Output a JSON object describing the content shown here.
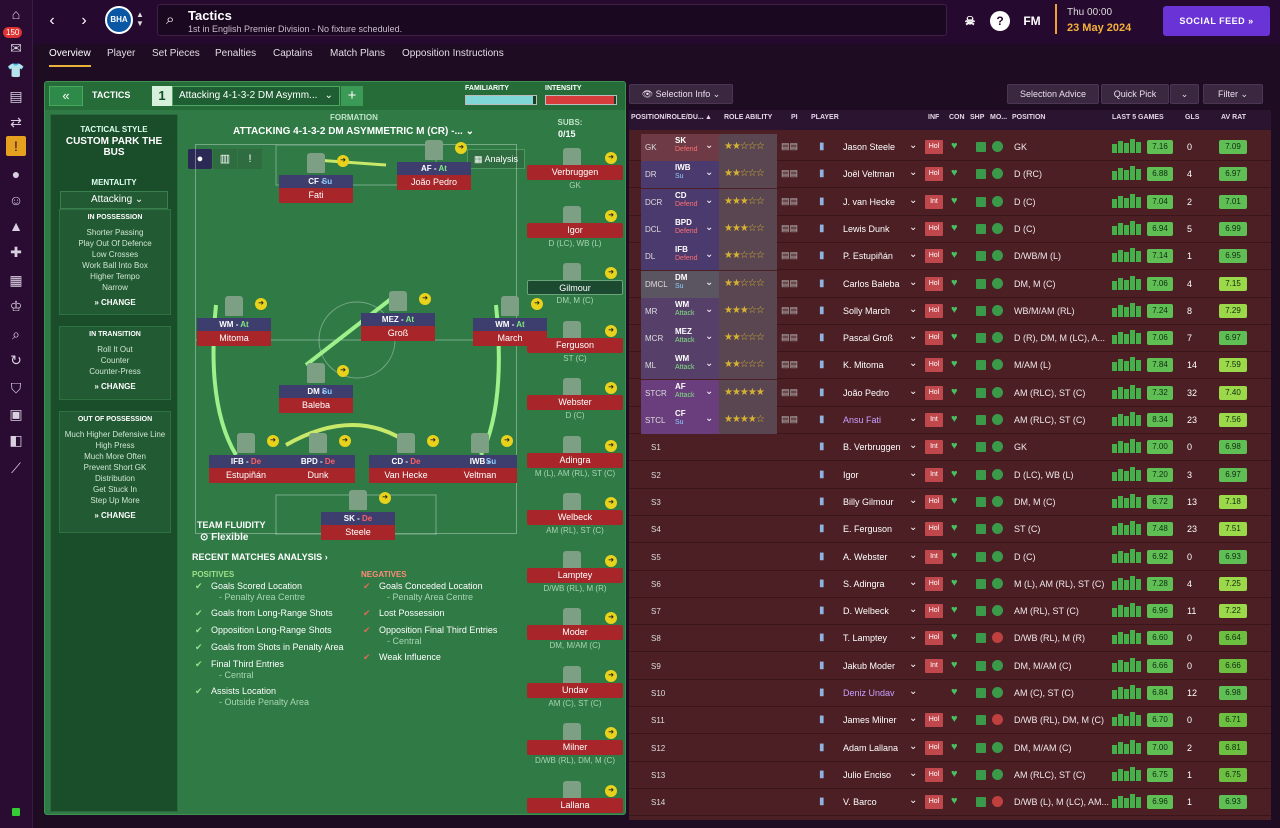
{
  "app": {
    "title": "Tactics",
    "subtitle": "1st in English Premier Division - No fixture scheduled.",
    "club_abbr": "BHA",
    "fm_label": "FM",
    "date_time": "Thu 00:00",
    "date": "23 May 2024",
    "social_feed": "SOCIAL FEED",
    "badge_count": "150",
    "accent": "#6a33d6"
  },
  "tabs": [
    "Overview",
    "Player",
    "Set Pieces",
    "Penalties",
    "Captains",
    "Match Plans",
    "Opposition Instructions"
  ],
  "tactics": {
    "header_label": "TACTICS",
    "slot": "1",
    "tactic_name": "Attacking 4-1-3-2 DM Asymm...",
    "familiarity_label": "FAMILIARITY",
    "familiarity": 0.95,
    "intensity_label": "INTENSITY",
    "intensity": 0.97,
    "formation_label": "FORMATION",
    "formation_name": "ATTACKING 4-1-3-2 DM ASYMMETRIC M (CR) -...",
    "subs_label": "SUBS:",
    "subs_count": "0/15",
    "analysis": "Analysis",
    "fluidity_label": "TEAM FLUIDITY",
    "fluidity": "Flexible"
  },
  "side": {
    "style_label": "TACTICAL STYLE",
    "style_name": "CUSTOM PARK THE BUS",
    "mentality_label": "MENTALITY",
    "mentality": "Attacking",
    "change": "CHANGE",
    "in_possession": {
      "title": "IN POSSESSION",
      "items": [
        "Shorter Passing",
        "Play Out Of Defence",
        "Low Crosses",
        "Work Ball Into Box",
        "Higher Tempo",
        "Narrow"
      ]
    },
    "in_transition": {
      "title": "IN TRANSITION",
      "items": [
        "Roll It Out",
        "Counter",
        "Counter-Press"
      ]
    },
    "out_possession": {
      "title": "OUT OF POSSESSION",
      "items": [
        "Much Higher Defensive Line",
        "High Press",
        "Much More Often",
        "Prevent Short GK",
        "Distribution",
        "Get Stuck In",
        "Step Up More"
      ]
    }
  },
  "pitch_players": [
    {
      "role": "CF",
      "duty": "Su",
      "name": "Fati"
    },
    {
      "role": "AF",
      "duty": "At",
      "name": "João Pedro"
    },
    {
      "role": "WM",
      "duty": "At",
      "name": "Mitoma"
    },
    {
      "role": "MEZ",
      "duty": "At",
      "name": "Groß"
    },
    {
      "role": "WM",
      "duty": "At",
      "name": "March"
    },
    {
      "role": "DM",
      "duty": "Su",
      "name": "Baleba"
    },
    {
      "role": "IFB",
      "duty": "De",
      "name": "Estupiñán"
    },
    {
      "role": "BPD",
      "duty": "De",
      "name": "Dunk"
    },
    {
      "role": "CD",
      "duty": "De",
      "name": "Van Hecke"
    },
    {
      "role": "IWB",
      "duty": "Su",
      "name": "Veltman"
    },
    {
      "role": "SK",
      "duty": "De",
      "name": "Steele"
    }
  ],
  "subs": [
    {
      "name": "Verbruggen",
      "pos": "GK"
    },
    {
      "name": "Igor",
      "pos": "D (LC), WB (L)"
    },
    {
      "name": "Gilmour",
      "pos": "DM, M (C)"
    },
    {
      "name": "Ferguson",
      "pos": "ST (C)"
    },
    {
      "name": "Webster",
      "pos": "D (C)"
    },
    {
      "name": "Adingra",
      "pos": "M (L), AM (RL), ST (C)"
    },
    {
      "name": "Welbeck",
      "pos": "AM (RL), ST (C)"
    },
    {
      "name": "Lamptey",
      "pos": "D/WB (RL), M (R)"
    },
    {
      "name": "Moder",
      "pos": "DM, M/AM (C)"
    },
    {
      "name": "Undav",
      "pos": "AM (C), ST (C)"
    },
    {
      "name": "Milner",
      "pos": "D/WB (RL), DM, M (C)"
    },
    {
      "name": "Lallana",
      "pos": ""
    }
  ],
  "recent": {
    "title": "RECENT MATCHES ANALYSIS",
    "pos_label": "POSITIVES",
    "neg_label": "NEGATIVES",
    "positives": [
      {
        "t": "Goals Scored Location",
        "s": "- Penalty Area Centre"
      },
      {
        "t": "Goals from Long-Range Shots",
        "s": ""
      },
      {
        "t": "Opposition Long-Range Shots",
        "s": ""
      },
      {
        "t": "Goals from Shots in Penalty Area",
        "s": ""
      },
      {
        "t": "Final Third Entries",
        "s": "- Central"
      },
      {
        "t": "Assists Location",
        "s": "- Outside Penalty Area"
      }
    ],
    "negatives": [
      {
        "t": "Goals Conceded Location",
        "s": "- Penalty Area Centre"
      },
      {
        "t": "Lost Possession",
        "s": ""
      },
      {
        "t": "Opposition Final Third Entries",
        "s": "- Central"
      },
      {
        "t": "Weak Influence",
        "s": ""
      }
    ]
  },
  "selection": {
    "info": "Selection Info",
    "advice": "Selection Advice",
    "quick_pick": "Quick Pick",
    "filter": "Filter"
  },
  "columns": [
    "POSITION/ROLE/DU...",
    "ROLE ABILITY",
    "PI",
    "PLAYER",
    "INF",
    "CON",
    "SHP",
    "MO...",
    "POSITION",
    "LAST 5 GAMES",
    "GLS",
    "AV RAT"
  ],
  "rows": [
    {
      "pos": "GK",
      "role": "SK",
      "duty": "Defend",
      "stars": "★★☆☆☆",
      "name": "Jason Steele",
      "inf": "Hol",
      "position": "GK",
      "rat": "7.16",
      "gls": "0",
      "av": "7.09"
    },
    {
      "pos": "DR",
      "role": "IWB",
      "duty": "Su",
      "stars": "★★☆☆☆",
      "name": "Joël Veltman",
      "inf": "Hol",
      "position": "D (RC)",
      "rat": "6.88",
      "gls": "4",
      "av": "6.97"
    },
    {
      "pos": "DCR",
      "role": "CD",
      "duty": "Defend",
      "stars": "★★★☆☆",
      "name": "J. van Hecke",
      "inf": "Int",
      "position": "D (C)",
      "rat": "7.04",
      "gls": "2",
      "av": "7.01"
    },
    {
      "pos": "DCL",
      "role": "BPD",
      "duty": "Defend",
      "stars": "★★★☆☆",
      "name": "Lewis Dunk",
      "inf": "Hol",
      "position": "D (C)",
      "rat": "6.94",
      "gls": "5",
      "av": "6.99"
    },
    {
      "pos": "DL",
      "role": "IFB",
      "duty": "Defend",
      "stars": "★★☆☆☆",
      "name": "P. Estupiñán",
      "inf": "Hol",
      "position": "D/WB/M (L)",
      "rat": "7.14",
      "gls": "1",
      "av": "6.95"
    },
    {
      "pos": "DMCL",
      "role": "DM",
      "duty": "Su",
      "stars": "★★☆☆☆",
      "name": "Carlos Baleba",
      "inf": "Hol",
      "position": "DM, M (C)",
      "rat": "7.06",
      "gls": "4",
      "av": "7.15"
    },
    {
      "pos": "MR",
      "role": "WM",
      "duty": "Attack",
      "stars": "★★★☆☆",
      "name": "Solly March",
      "inf": "Hol",
      "position": "WB/M/AM (RL)",
      "rat": "7.24",
      "gls": "8",
      "av": "7.29"
    },
    {
      "pos": "MCR",
      "role": "MEZ",
      "duty": "Attack",
      "stars": "★★☆☆☆",
      "name": "Pascal Groß",
      "inf": "Hol",
      "position": "D (R), DM, M (LC), A...",
      "rat": "7.06",
      "gls": "7",
      "av": "6.97"
    },
    {
      "pos": "ML",
      "role": "WM",
      "duty": "Attack",
      "stars": "★★☆☆☆",
      "name": "K. Mitoma",
      "inf": "Hol",
      "position": "M/AM (L)",
      "rat": "7.84",
      "gls": "14",
      "av": "7.59"
    },
    {
      "pos": "STCR",
      "role": "AF",
      "duty": "Attack",
      "stars": "★★★★★",
      "name": "João Pedro",
      "inf": "Hol",
      "position": "AM (RLC), ST (C)",
      "rat": "7.32",
      "gls": "32",
      "av": "7.40"
    },
    {
      "pos": "STCL",
      "role": "CF",
      "duty": "Su",
      "stars": "★★★★☆",
      "name": "Ansu Fati",
      "inf": "Int",
      "position": "AM (RLC), ST (C)",
      "rat": "8.34",
      "gls": "23",
      "av": "7.56"
    },
    {
      "pos": "S1",
      "role": "",
      "duty": "",
      "stars": "",
      "name": "B. Verbruggen",
      "inf": "Int",
      "position": "GK",
      "rat": "7.00",
      "gls": "0",
      "av": "6.98"
    },
    {
      "pos": "S2",
      "role": "",
      "duty": "",
      "stars": "",
      "name": "Igor",
      "inf": "Int",
      "position": "D (LC), WB (L)",
      "rat": "7.20",
      "gls": "3",
      "av": "6.97"
    },
    {
      "pos": "S3",
      "role": "",
      "duty": "",
      "stars": "",
      "name": "Billy Gilmour",
      "inf": "Hol",
      "position": "DM, M (C)",
      "rat": "6.72",
      "gls": "13",
      "av": "7.18"
    },
    {
      "pos": "S4",
      "role": "",
      "duty": "",
      "stars": "",
      "name": "E. Ferguson",
      "inf": "Hol",
      "position": "ST (C)",
      "rat": "7.48",
      "gls": "23",
      "av": "7.51"
    },
    {
      "pos": "S5",
      "role": "",
      "duty": "",
      "stars": "",
      "name": "A. Webster",
      "inf": "Int",
      "position": "D (C)",
      "rat": "6.92",
      "gls": "0",
      "av": "6.93"
    },
    {
      "pos": "S6",
      "role": "",
      "duty": "",
      "stars": "",
      "name": "S. Adingra",
      "inf": "Hol",
      "position": "M (L), AM (RL), ST (C)",
      "rat": "7.28",
      "gls": "4",
      "av": "7.25"
    },
    {
      "pos": "S7",
      "role": "",
      "duty": "",
      "stars": "",
      "name": "D. Welbeck",
      "inf": "Hol",
      "position": "AM (RL), ST (C)",
      "rat": "6.96",
      "gls": "11",
      "av": "7.22"
    },
    {
      "pos": "S8",
      "role": "",
      "duty": "",
      "stars": "",
      "name": "T. Lamptey",
      "inf": "Hol",
      "position": "D/WB (RL), M (R)",
      "rat": "6.60",
      "gls": "0",
      "av": "6.64"
    },
    {
      "pos": "S9",
      "role": "",
      "duty": "",
      "stars": "",
      "name": "Jakub Moder",
      "inf": "Int",
      "position": "DM, M/AM (C)",
      "rat": "6.66",
      "gls": "0",
      "av": "6.66"
    },
    {
      "pos": "S10",
      "role": "",
      "duty": "",
      "stars": "",
      "name": "Deniz Undav",
      "inf": "",
      "position": "AM (C), ST (C)",
      "rat": "6.84",
      "gls": "12",
      "av": "6.98"
    },
    {
      "pos": "S11",
      "role": "",
      "duty": "",
      "stars": "",
      "name": "James Milner",
      "inf": "Hol",
      "position": "D/WB (RL), DM, M (C)",
      "rat": "6.70",
      "gls": "0",
      "av": "6.71"
    },
    {
      "pos": "S12",
      "role": "",
      "duty": "",
      "stars": "",
      "name": "Adam Lallana",
      "inf": "Hol",
      "position": "DM, M/AM (C)",
      "rat": "7.00",
      "gls": "2",
      "av": "6.81"
    },
    {
      "pos": "S13",
      "role": "",
      "duty": "",
      "stars": "",
      "name": "Julio Enciso",
      "inf": "Hol",
      "position": "AM (RLC), ST (C)",
      "rat": "6.75",
      "gls": "1",
      "av": "6.75"
    },
    {
      "pos": "S14",
      "role": "",
      "duty": "",
      "stars": "",
      "name": "V. Barco",
      "inf": "Hol",
      "position": "D/WB (L), M (LC), AM...",
      "rat": "6.96",
      "gls": "1",
      "av": "6.93"
    }
  ]
}
